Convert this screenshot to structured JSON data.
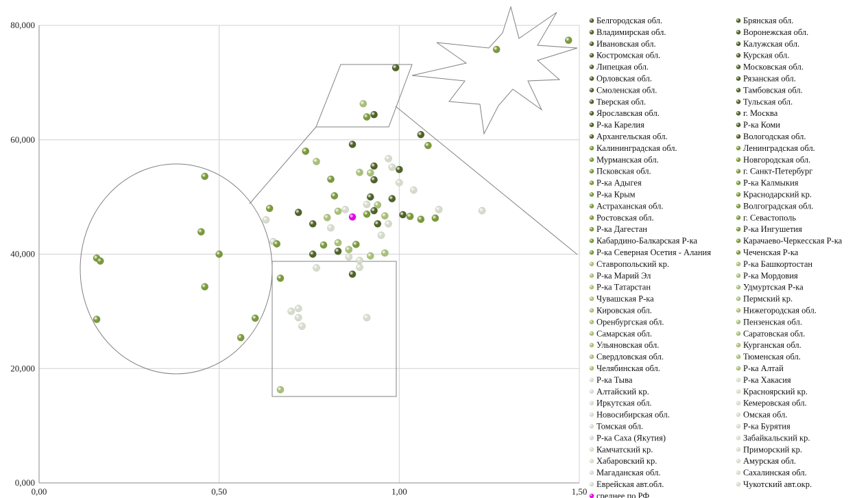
{
  "chart_data": {
    "type": "scatter",
    "title": "",
    "xlabel": "",
    "ylabel": "",
    "xlim": [
      0,
      1.5
    ],
    "ylim": [
      0,
      80000
    ],
    "x_ticks": [
      "0,00",
      "0,50",
      "1,00",
      "1,50"
    ],
    "y_ticks": [
      "0,000",
      "20,000",
      "40,000",
      "60,000",
      "80,000"
    ],
    "grid": true,
    "legend_position": "right",
    "colors": {
      "dark_green": "#4f6228",
      "mid_green": "#7a9a3a",
      "light_green": "#a9bf78",
      "pale": "#d6dccb",
      "average": "#e600e6",
      "grid": "#d0d0d0",
      "annotation": "#808080"
    },
    "legend_col1": [
      "Белгородская обл.",
      "Владимирская обл.",
      "Ивановская обл.",
      "Костромская обл.",
      "Липецкая обл.",
      "Орловская обл.",
      "Смоленская обл.",
      "Тверская обл.",
      "Ярославская обл.",
      "Р-ка Карелия",
      "Архангельская обл.",
      "Калининградская обл.",
      "Мурманская обл.",
      "Псковская обл.",
      "Р-ка Адыгея",
      "Р-ка Крым",
      "Астраханская обл.",
      "Ростовская обл.",
      "Р-ка Дагестан",
      "Кабардино-Балкарская Р-ка",
      "Р-ка Северная Осетия - Алания",
      "Ставропольский кр.",
      "Р-ка Марий Эл",
      "Р-ка Татарстан",
      "Чувашская Р-ка",
      "Кировская обл.",
      "Оренбургская обл.",
      "Самарская обл.",
      "Ульяновская обл.",
      "Свердловская обл.",
      "Челябинская обл.",
      "Р-ка Тыва",
      "Алтайский кр.",
      "Иркутская обл.",
      "Новосибирская обл.",
      "Томская обл.",
      "Р-ка Саха (Якутия)",
      "Камчатский кр.",
      "Хабаровский кр.",
      "Магаданская обл.",
      "Еврейская авт.обл.",
      "среднее по РФ"
    ],
    "legend_col2": [
      "Брянская обл.",
      "Воронежская обл.",
      "Калужская обл.",
      "Курская обл.",
      "Московская обл.",
      "Рязанская обл.",
      "Тамбовская обл.",
      "Тульская обл.",
      "г. Москва",
      "Р-ка Коми",
      "Вологодская обл.",
      "Ленинградская обл.",
      "Новгородская обл.",
      "г. Санкт-Петербург",
      "Р-ка Калмыкия",
      "Краснодарский кр.",
      "Волгоградская обл.",
      "г. Севастополь",
      "Р-ка Ингушетия",
      "Карачаево-Черкесская Р-ка",
      "Чеченская Р-ка",
      "Р-ка Башкортостан",
      "Р-ка Мордовия",
      "Удмуртская Р-ка",
      "Пермский кр.",
      "Нижегородская обл.",
      "Пензенская обл.",
      "Саратовская обл.",
      "Курганская обл.",
      "Тюменская обл.",
      "Р-ка Алтай",
      "Р-ка Хакасия",
      "Красноярский кр.",
      "Кемеровская обл.",
      "Омская обл.",
      "Р-ка Бурятия",
      "Забайкальский кр.",
      "Приморский кр.",
      "Амурская обл.",
      "Сахалинская обл.",
      "Чукотский авт.окр."
    ],
    "points": [
      {
        "x": 0.16,
        "y": 39300,
        "c": "mid_green"
      },
      {
        "x": 0.17,
        "y": 38800,
        "c": "mid_green"
      },
      {
        "x": 0.16,
        "y": 28600,
        "c": "mid_green"
      },
      {
        "x": 0.45,
        "y": 43900,
        "c": "mid_green"
      },
      {
        "x": 0.46,
        "y": 53600,
        "c": "mid_green"
      },
      {
        "x": 0.46,
        "y": 34300,
        "c": "mid_green"
      },
      {
        "x": 0.5,
        "y": 40000,
        "c": "mid_green"
      },
      {
        "x": 0.56,
        "y": 25400,
        "c": "mid_green"
      },
      {
        "x": 0.6,
        "y": 28800,
        "c": "mid_green"
      },
      {
        "x": 0.63,
        "y": 46000,
        "c": "pale"
      },
      {
        "x": 0.64,
        "y": 48000,
        "c": "mid_green"
      },
      {
        "x": 0.65,
        "y": 42200,
        "c": "pale"
      },
      {
        "x": 0.66,
        "y": 41800,
        "c": "mid_green"
      },
      {
        "x": 0.67,
        "y": 35800,
        "c": "mid_green"
      },
      {
        "x": 0.67,
        "y": 16300,
        "c": "light_green"
      },
      {
        "x": 0.7,
        "y": 30000,
        "c": "pale"
      },
      {
        "x": 0.72,
        "y": 30500,
        "c": "pale"
      },
      {
        "x": 0.72,
        "y": 28900,
        "c": "pale"
      },
      {
        "x": 0.73,
        "y": 27400,
        "c": "pale"
      },
      {
        "x": 0.72,
        "y": 47300,
        "c": "dark_green"
      },
      {
        "x": 0.74,
        "y": 58000,
        "c": "mid_green"
      },
      {
        "x": 0.76,
        "y": 45300,
        "c": "dark_green"
      },
      {
        "x": 0.76,
        "y": 40000,
        "c": "dark_green"
      },
      {
        "x": 0.77,
        "y": 37600,
        "c": "pale"
      },
      {
        "x": 0.77,
        "y": 56200,
        "c": "light_green"
      },
      {
        "x": 0.79,
        "y": 41600,
        "c": "mid_green"
      },
      {
        "x": 0.8,
        "y": 46400,
        "c": "light_green"
      },
      {
        "x": 0.81,
        "y": 53100,
        "c": "mid_green"
      },
      {
        "x": 0.81,
        "y": 44600,
        "c": "pale"
      },
      {
        "x": 0.82,
        "y": 50200,
        "c": "mid_green"
      },
      {
        "x": 0.83,
        "y": 47500,
        "c": "light_green"
      },
      {
        "x": 0.83,
        "y": 42000,
        "c": "light_green"
      },
      {
        "x": 0.83,
        "y": 40500,
        "c": "dark_green"
      },
      {
        "x": 0.85,
        "y": 47800,
        "c": "pale"
      },
      {
        "x": 0.86,
        "y": 40800,
        "c": "light_green"
      },
      {
        "x": 0.86,
        "y": 39500,
        "c": "pale"
      },
      {
        "x": 0.87,
        "y": 59200,
        "c": "dark_green"
      },
      {
        "x": 0.87,
        "y": 36500,
        "c": "dark_green"
      },
      {
        "x": 0.88,
        "y": 41700,
        "c": "mid_green"
      },
      {
        "x": 0.89,
        "y": 54300,
        "c": "light_green"
      },
      {
        "x": 0.89,
        "y": 38900,
        "c": "pale"
      },
      {
        "x": 0.89,
        "y": 37700,
        "c": "pale"
      },
      {
        "x": 0.9,
        "y": 66300,
        "c": "light_green"
      },
      {
        "x": 0.91,
        "y": 64000,
        "c": "mid_green"
      },
      {
        "x": 0.91,
        "y": 48700,
        "c": "pale"
      },
      {
        "x": 0.91,
        "y": 47000,
        "c": "mid_green"
      },
      {
        "x": 0.91,
        "y": 28900,
        "c": "pale"
      },
      {
        "x": 0.92,
        "y": 50000,
        "c": "dark_green"
      },
      {
        "x": 0.92,
        "y": 54200,
        "c": "light_green"
      },
      {
        "x": 0.92,
        "y": 39700,
        "c": "light_green"
      },
      {
        "x": 0.93,
        "y": 64400,
        "c": "dark_green"
      },
      {
        "x": 0.93,
        "y": 55400,
        "c": "dark_green"
      },
      {
        "x": 0.93,
        "y": 53000,
        "c": "dark_green"
      },
      {
        "x": 0.93,
        "y": 47600,
        "c": "dark_green"
      },
      {
        "x": 0.94,
        "y": 48600,
        "c": "light_green"
      },
      {
        "x": 0.94,
        "y": 45300,
        "c": "dark_green"
      },
      {
        "x": 0.95,
        "y": 43300,
        "c": "pale"
      },
      {
        "x": 0.96,
        "y": 46700,
        "c": "light_green"
      },
      {
        "x": 0.96,
        "y": 40200,
        "c": "light_green"
      },
      {
        "x": 0.97,
        "y": 56700,
        "c": "pale"
      },
      {
        "x": 0.97,
        "y": 45300,
        "c": "pale"
      },
      {
        "x": 0.98,
        "y": 55200,
        "c": "pale"
      },
      {
        "x": 0.98,
        "y": 49700,
        "c": "dark_green"
      },
      {
        "x": 0.99,
        "y": 72600,
        "c": "dark_green"
      },
      {
        "x": 1.0,
        "y": 54800,
        "c": "dark_green"
      },
      {
        "x": 1.0,
        "y": 52500,
        "c": "pale"
      },
      {
        "x": 1.01,
        "y": 46900,
        "c": "dark_green"
      },
      {
        "x": 1.03,
        "y": 46600,
        "c": "mid_green"
      },
      {
        "x": 1.04,
        "y": 51200,
        "c": "pale"
      },
      {
        "x": 1.06,
        "y": 60900,
        "c": "dark_green"
      },
      {
        "x": 1.06,
        "y": 46100,
        "c": "mid_green"
      },
      {
        "x": 1.08,
        "y": 59000,
        "c": "mid_green"
      },
      {
        "x": 1.1,
        "y": 46300,
        "c": "mid_green"
      },
      {
        "x": 1.11,
        "y": 47800,
        "c": "pale"
      },
      {
        "x": 1.23,
        "y": 47600,
        "c": "pale"
      },
      {
        "x": 1.27,
        "y": 75800,
        "c": "mid_green"
      },
      {
        "x": 1.47,
        "y": 77400,
        "c": "mid_green"
      },
      {
        "x": 0.87,
        "y": 46500,
        "c": "average"
      }
    ]
  }
}
